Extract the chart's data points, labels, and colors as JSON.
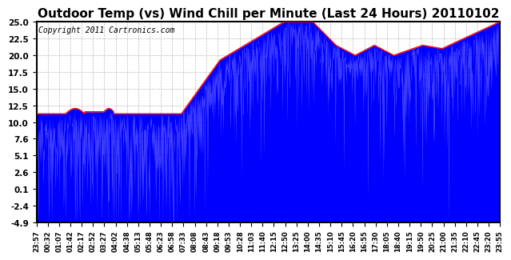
{
  "title": "Outdoor Temp (vs) Wind Chill per Minute (Last 24 Hours) 20110102",
  "copyright": "Copyright 2011 Cartronics.com",
  "yticks": [
    -4.9,
    -2.4,
    0.1,
    2.6,
    5.1,
    7.6,
    10.0,
    12.5,
    15.0,
    17.5,
    20.0,
    22.5,
    25.0
  ],
  "ylim": [
    -4.9,
    25.0
  ],
  "bar_color": "#0000ff",
  "line_color": "#ff0000",
  "background_color": "#ffffff",
  "title_fontsize": 11,
  "copyright_fontsize": 7,
  "xtick_labels": [
    "23:57",
    "00:32",
    "01:07",
    "01:42",
    "02:17",
    "02:52",
    "03:27",
    "04:02",
    "04:38",
    "05:13",
    "05:48",
    "06:23",
    "06:58",
    "07:33",
    "08:08",
    "08:43",
    "09:18",
    "09:53",
    "10:28",
    "11:03",
    "11:40",
    "12:15",
    "12:50",
    "13:25",
    "14:00",
    "14:35",
    "15:10",
    "15:45",
    "16:20",
    "16:55",
    "17:30",
    "18:05",
    "18:40",
    "19:15",
    "19:50",
    "20:25",
    "21:00",
    "21:35",
    "22:10",
    "22:45",
    "23:20",
    "23:55"
  ]
}
